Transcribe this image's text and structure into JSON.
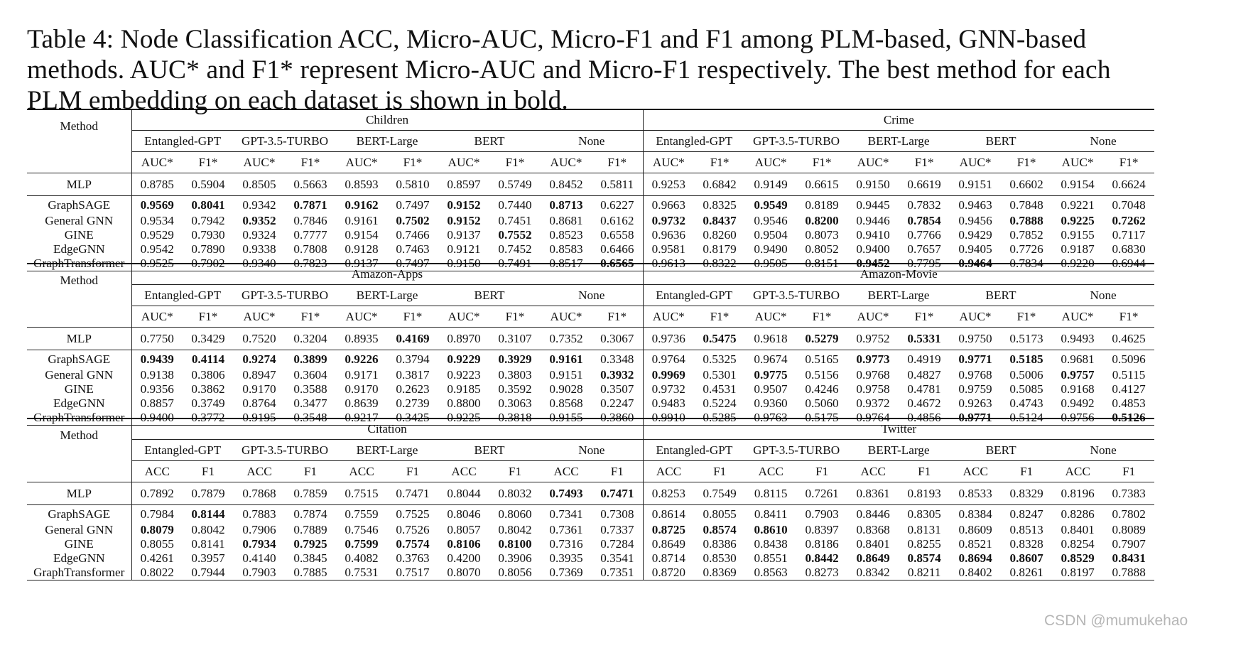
{
  "caption": "Table 4: Node Classification ACC, Micro-AUC, Micro-F1 and F1 among PLM-based, GNN-based methods. AUC* and F1* represent Micro-AUC and Micro-F1 respectively. The best method for each PLM embedding on each dataset is shown in bold.",
  "method_header": "Method",
  "plms": [
    "Entangled-GPT",
    "GPT-3.5-TURBO",
    "BERT-Large",
    "BERT",
    "None"
  ],
  "methods": [
    "MLP",
    "GraphSAGE",
    "General GNN",
    "GINE",
    "EdgeGNN",
    "GraphTransformer"
  ],
  "watermark": "CSDN @mumukehao",
  "tables": [
    {
      "datasets": [
        "Children",
        "Crime"
      ],
      "metrics": [
        "AUC*",
        "F1*"
      ],
      "rows": [
        [
          "0.8785",
          "0.5904",
          "0.8505",
          "0.5663",
          "0.8593",
          "0.5810",
          "0.8597",
          "0.5749",
          "0.8452",
          "0.5811",
          "0.9253",
          "0.6842",
          "0.9149",
          "0.6615",
          "0.9150",
          "0.6619",
          "0.9151",
          "0.6602",
          "0.9154",
          "0.6624"
        ],
        [
          "**0.9569",
          "**0.8041",
          "0.9342",
          "**0.7871",
          "**0.9162",
          "0.7497",
          "**0.9152",
          "0.7440",
          "**0.8713",
          "0.6227",
          "0.9663",
          "0.8325",
          "**0.9549",
          "0.8189",
          "0.9445",
          "0.7832",
          "0.9463",
          "0.7848",
          "0.9221",
          "0.7048"
        ],
        [
          "0.9534",
          "0.7942",
          "**0.9352",
          "0.7846",
          "0.9161",
          "**0.7502",
          "**0.9152",
          "0.7451",
          "0.8681",
          "0.6162",
          "**0.9732",
          "**0.8437",
          "0.9546",
          "**0.8200",
          "0.9446",
          "**0.7854",
          "0.9456",
          "**0.7888",
          "**0.9225",
          "**0.7262"
        ],
        [
          "0.9529",
          "0.7930",
          "0.9324",
          "0.7777",
          "0.9154",
          "0.7466",
          "0.9137",
          "**0.7552",
          "0.8523",
          "0.6558",
          "0.9636",
          "0.8260",
          "0.9504",
          "0.8073",
          "0.9410",
          "0.7766",
          "0.9429",
          "0.7852",
          "0.9155",
          "0.7117"
        ],
        [
          "0.9542",
          "0.7890",
          "0.9338",
          "0.7808",
          "0.9128",
          "0.7463",
          "0.9121",
          "0.7452",
          "0.8583",
          "0.6466",
          "0.9581",
          "0.8179",
          "0.9490",
          "0.8052",
          "0.9400",
          "0.7657",
          "0.9405",
          "0.7726",
          "0.9187",
          "0.6830"
        ],
        [
          "0.9525",
          "0.7902",
          "0.9340",
          "0.7823",
          "0.9137",
          "0.7497",
          "0.9150",
          "0.7491",
          "0.8517",
          "**0.6565",
          "0.9613",
          "0.8322",
          "0.9505",
          "0.8151",
          "**0.9452",
          "0.7795",
          "**0.9464",
          "0.7834",
          "0.9220",
          "0.6944"
        ]
      ]
    },
    {
      "datasets": [
        "Amazon-Apps",
        "Amazon-Movie"
      ],
      "metrics": [
        "AUC*",
        "F1*"
      ],
      "rows": [
        [
          "0.7750",
          "0.3429",
          "0.7520",
          "0.3204",
          "0.8935",
          "**0.4169",
          "0.8970",
          "0.3107",
          "0.7352",
          "0.3067",
          "0.9736",
          "**0.5475",
          "0.9618",
          "**0.5279",
          "0.9752",
          "**0.5331",
          "0.9750",
          "0.5173",
          "0.9493",
          "0.4625"
        ],
        [
          "**0.9439",
          "**0.4114",
          "**0.9274",
          "**0.3899",
          "**0.9226",
          "0.3794",
          "**0.9229",
          "**0.3929",
          "**0.9161",
          "0.3348",
          "0.9764",
          "0.5325",
          "0.9674",
          "0.5165",
          "**0.9773",
          "0.4919",
          "**0.9771",
          "**0.5185",
          "0.9681",
          "0.5096"
        ],
        [
          "0.9138",
          "0.3806",
          "0.8947",
          "0.3604",
          "0.9171",
          "0.3817",
          "0.9223",
          "0.3803",
          "0.9151",
          "**0.3932",
          "**0.9969",
          "0.5301",
          "**0.9775",
          "0.5156",
          "0.9768",
          "0.4827",
          "0.9768",
          "0.5006",
          "**0.9757",
          "0.5115"
        ],
        [
          "0.9356",
          "0.3862",
          "0.9170",
          "0.3588",
          "0.9170",
          "0.2623",
          "0.9185",
          "0.3592",
          "0.9028",
          "0.3507",
          "0.9732",
          "0.4531",
          "0.9507",
          "0.4246",
          "0.9758",
          "0.4781",
          "0.9759",
          "0.5085",
          "0.9168",
          "0.4127"
        ],
        [
          "0.8857",
          "0.3749",
          "0.8764",
          "0.3477",
          "0.8639",
          "0.2739",
          "0.8800",
          "0.3063",
          "0.8568",
          "0.2247",
          "0.9483",
          "0.5224",
          "0.9360",
          "0.5060",
          "0.9372",
          "0.4672",
          "0.9263",
          "0.4743",
          "0.9492",
          "0.4853"
        ],
        [
          "0.9400",
          "0.3772",
          "0.9195",
          "0.3548",
          "0.9217",
          "0.3425",
          "0.9225",
          "0.3818",
          "0.9155",
          "0.3860",
          "0.9910",
          "0.5285",
          "0.9763",
          "0.5175",
          "0.9764",
          "0.4856",
          "**0.9771",
          "0.5124",
          "0.9756",
          "**0.5126"
        ]
      ]
    },
    {
      "datasets": [
        "Citation",
        "Twitter"
      ],
      "metrics": [
        "ACC",
        "F1"
      ],
      "rows": [
        [
          "0.7892",
          "0.7879",
          "0.7868",
          "0.7859",
          "0.7515",
          "0.7471",
          "0.8044",
          "0.8032",
          "**0.7493",
          "**0.7471",
          "0.8253",
          "0.7549",
          "0.8115",
          "0.7261",
          "0.8361",
          "0.8193",
          "0.8533",
          "0.8329",
          "0.8196",
          "0.7383"
        ],
        [
          "0.7984",
          "**0.8144",
          "0.7883",
          "0.7874",
          "0.7559",
          "0.7525",
          "0.8046",
          "0.8060",
          "0.7341",
          "0.7308",
          "0.8614",
          "0.8055",
          "0.8411",
          "0.7903",
          "0.8446",
          "0.8305",
          "0.8384",
          "0.8247",
          "0.8286",
          "0.7802"
        ],
        [
          "**0.8079",
          "0.8042",
          "0.7906",
          "0.7889",
          "0.7546",
          "0.7526",
          "0.8057",
          "0.8042",
          "0.7361",
          "0.7337",
          "**0.8725",
          "**0.8574",
          "**0.8610",
          "0.8397",
          "0.8368",
          "0.8131",
          "0.8609",
          "0.8513",
          "0.8401",
          "0.8089"
        ],
        [
          "0.8055",
          "0.8141",
          "**0.7934",
          "**0.7925",
          "**0.7599",
          "**0.7574",
          "**0.8106",
          "**0.8100",
          "0.7316",
          "0.7284",
          "0.8649",
          "0.8386",
          "0.8438",
          "0.8186",
          "0.8401",
          "0.8255",
          "0.8521",
          "0.8328",
          "0.8254",
          "0.7907"
        ],
        [
          "0.4261",
          "0.3957",
          "0.4140",
          "0.3845",
          "0.4082",
          "0.3763",
          "0.4200",
          "0.3906",
          "0.3935",
          "0.3541",
          "0.8714",
          "0.8530",
          "0.8551",
          "**0.8442",
          "**0.8649",
          "**0.8574",
          "**0.8694",
          "**0.8607",
          "**0.8529",
          "**0.8431"
        ],
        [
          "0.8022",
          "0.7944",
          "0.7903",
          "0.7885",
          "0.7531",
          "0.7517",
          "0.8070",
          "0.8056",
          "0.7369",
          "0.7351",
          "0.8720",
          "0.8369",
          "0.8563",
          "0.8273",
          "0.8342",
          "0.8211",
          "0.8402",
          "0.8261",
          "0.8197",
          "0.7888"
        ]
      ]
    }
  ]
}
